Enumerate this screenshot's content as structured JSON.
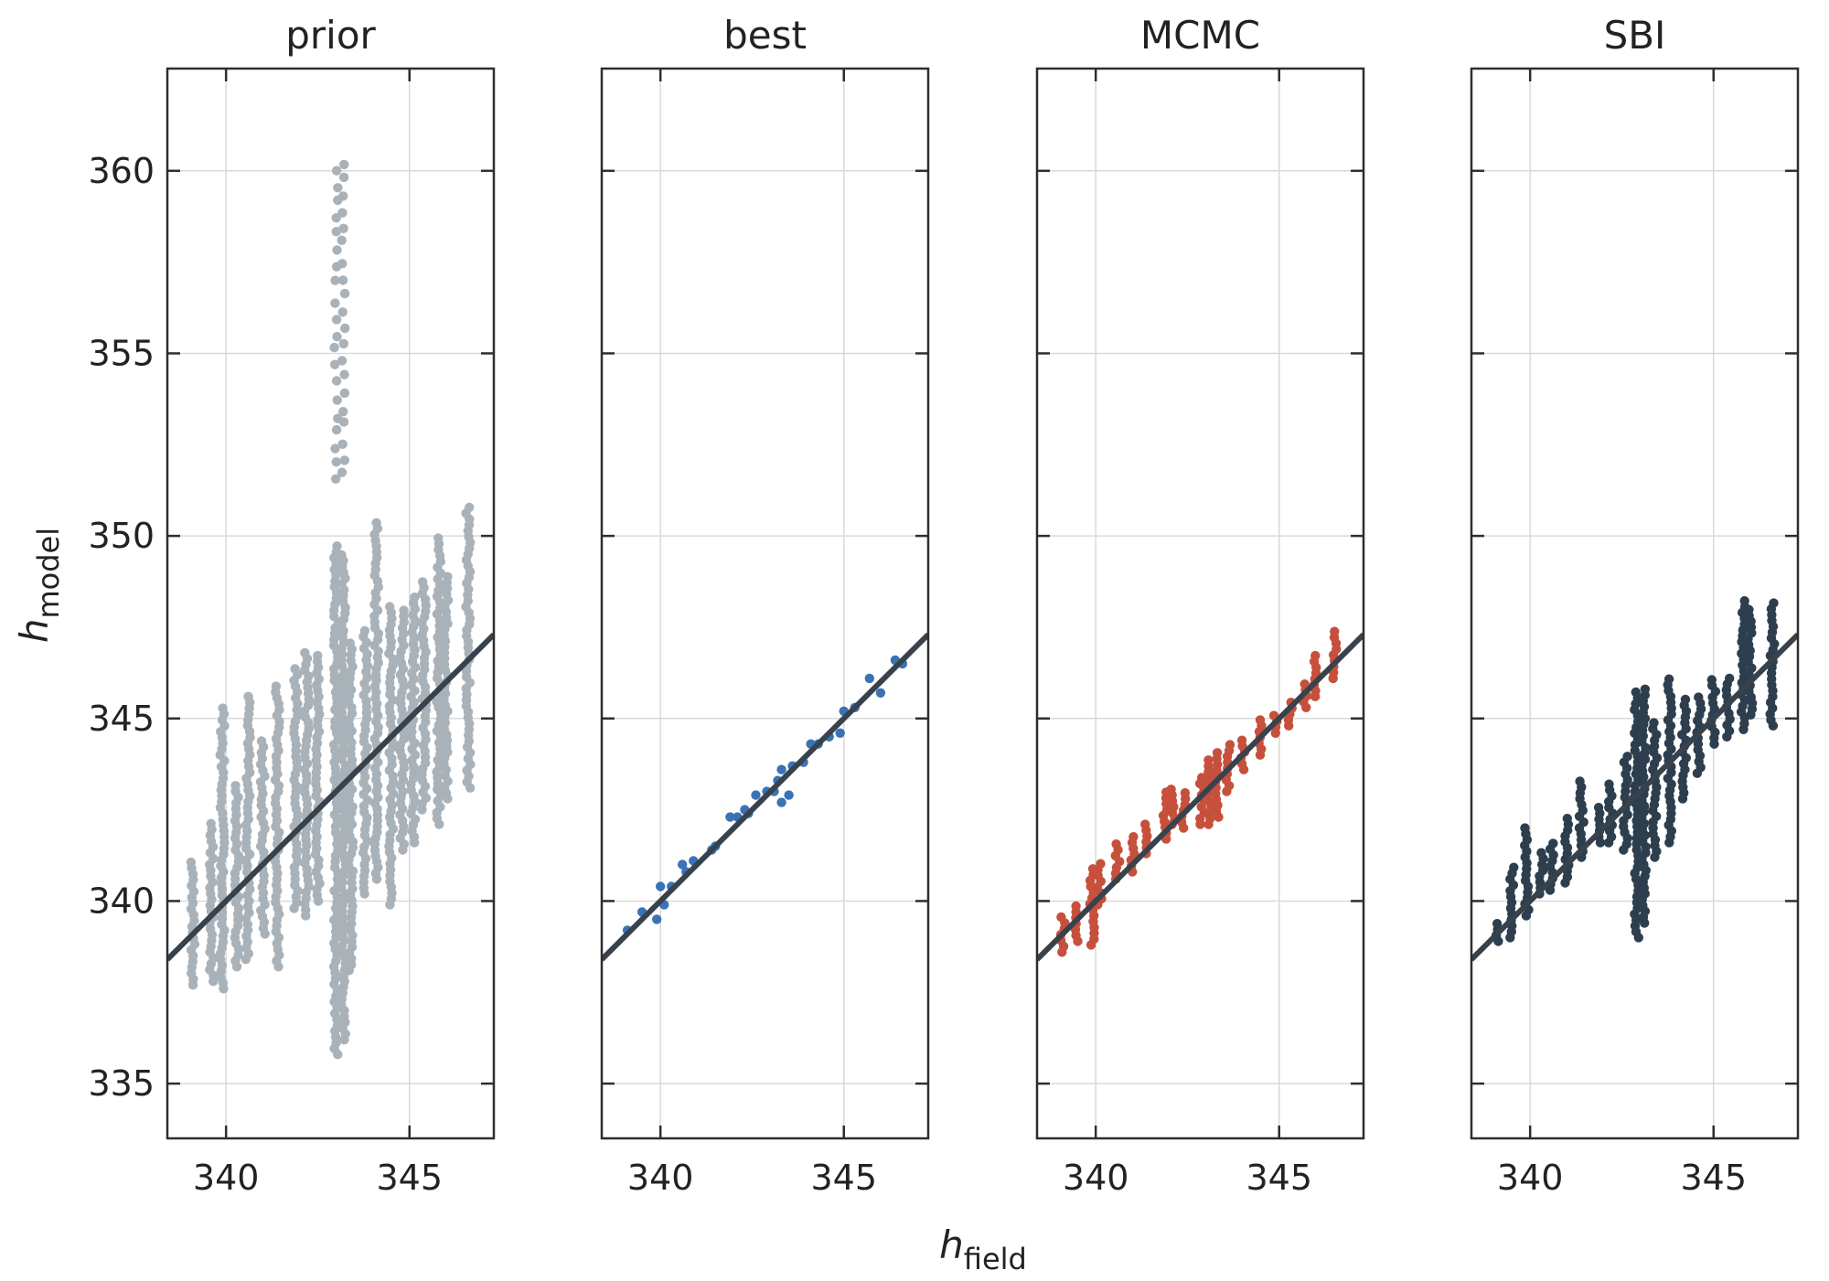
{
  "figure": {
    "ylabel": {
      "main": "h",
      "sub": "model"
    },
    "xlabel": {
      "main": "h",
      "sub": "field"
    }
  },
  "chart_data": [
    {
      "type": "scatter",
      "title": "prior",
      "color": "#a9b2b9",
      "xlim": [
        338.4,
        347.3
      ],
      "ylim": [
        333.5,
        362.8
      ],
      "x_ticks": [
        340,
        345
      ],
      "y_ticks": [
        335,
        340,
        345,
        350,
        355,
        360
      ],
      "grid": true,
      "reference_line": {
        "points": [
          [
            338.4,
            338.4
          ],
          [
            347.3,
            347.3
          ]
        ],
        "color": "#37424d"
      },
      "columns": [
        {
          "x": 339.1,
          "y_min": 337.7,
          "y_max": 341.1
        },
        {
          "x": 339.6,
          "y_min": 337.8,
          "y_max": 342.2
        },
        {
          "x": 339.9,
          "y_min": 337.6,
          "y_max": 345.4
        },
        {
          "x": 340.3,
          "y_min": 338.2,
          "y_max": 343.3
        },
        {
          "x": 340.6,
          "y_min": 338.4,
          "y_max": 345.6
        },
        {
          "x": 341.0,
          "y_min": 339.1,
          "y_max": 344.5
        },
        {
          "x": 341.4,
          "y_min": 338.2,
          "y_max": 346.0
        },
        {
          "x": 341.9,
          "y_min": 339.8,
          "y_max": 346.4
        },
        {
          "x": 342.2,
          "y_min": 339.6,
          "y_max": 346.9
        },
        {
          "x": 342.5,
          "y_min": 340.0,
          "y_max": 346.8
        },
        {
          "x": 343.0,
          "y_min": 335.8,
          "y_max": 349.8
        },
        {
          "x": 343.2,
          "y_min": 336.2,
          "y_max": 349.5
        },
        {
          "x": 343.4,
          "y_min": 338.1,
          "y_max": 347.2
        },
        {
          "x": 343.8,
          "y_min": 340.2,
          "y_max": 347.5
        },
        {
          "x": 344.1,
          "y_min": 340.6,
          "y_max": 350.4
        },
        {
          "x": 344.5,
          "y_min": 339.9,
          "y_max": 348.1
        },
        {
          "x": 344.8,
          "y_min": 341.4,
          "y_max": 348.0
        },
        {
          "x": 345.1,
          "y_min": 341.6,
          "y_max": 348.4
        },
        {
          "x": 345.4,
          "y_min": 342.5,
          "y_max": 348.8
        },
        {
          "x": 345.8,
          "y_min": 342.1,
          "y_max": 350.0
        },
        {
          "x": 346.0,
          "y_min": 342.8,
          "y_max": 349.0
        },
        {
          "x": 346.6,
          "y_min": 343.1,
          "y_max": 350.8
        }
      ],
      "outliers": [
        {
          "x": 343.0,
          "y_min": 351.5,
          "y_max": 360.3
        },
        {
          "x": 343.2,
          "y_min": 351.7,
          "y_max": 360.3
        }
      ]
    },
    {
      "type": "scatter",
      "title": "best",
      "color": "#3a73b5",
      "xlim": [
        338.4,
        347.3
      ],
      "ylim": [
        333.5,
        362.8
      ],
      "x_ticks": [
        340,
        345
      ],
      "y_ticks": [
        335,
        340,
        345,
        350,
        355,
        360
      ],
      "grid": true,
      "reference_line": {
        "points": [
          [
            338.4,
            338.4
          ],
          [
            347.3,
            347.3
          ]
        ],
        "color": "#37424d"
      },
      "points": [
        [
          339.1,
          339.2
        ],
        [
          339.5,
          339.7
        ],
        [
          339.9,
          339.5
        ],
        [
          340.0,
          340.4
        ],
        [
          340.1,
          339.9
        ],
        [
          340.3,
          340.4
        ],
        [
          340.6,
          341.0
        ],
        [
          340.7,
          340.8
        ],
        [
          340.9,
          341.1
        ],
        [
          341.4,
          341.4
        ],
        [
          341.5,
          341.5
        ],
        [
          341.9,
          342.3
        ],
        [
          342.1,
          342.3
        ],
        [
          342.3,
          342.5
        ],
        [
          342.4,
          342.4
        ],
        [
          342.6,
          342.9
        ],
        [
          342.9,
          343.0
        ],
        [
          343.1,
          343.0
        ],
        [
          343.2,
          343.3
        ],
        [
          343.3,
          343.6
        ],
        [
          343.3,
          342.7
        ],
        [
          343.5,
          342.9
        ],
        [
          343.6,
          343.7
        ],
        [
          343.9,
          343.8
        ],
        [
          344.1,
          344.3
        ],
        [
          344.3,
          344.3
        ],
        [
          344.6,
          344.5
        ],
        [
          344.9,
          344.6
        ],
        [
          345.0,
          345.2
        ],
        [
          345.3,
          345.3
        ],
        [
          345.7,
          346.1
        ],
        [
          346.0,
          345.7
        ],
        [
          346.4,
          346.6
        ],
        [
          346.6,
          346.5
        ]
      ]
    },
    {
      "type": "scatter",
      "title": "MCMC",
      "color": "#c6503c",
      "xlim": [
        338.4,
        347.3
      ],
      "ylim": [
        333.5,
        362.8
      ],
      "x_ticks": [
        340,
        345
      ],
      "y_ticks": [
        335,
        340,
        345,
        350,
        355,
        360
      ],
      "grid": true,
      "reference_line": {
        "points": [
          [
            338.4,
            338.4
          ],
          [
            347.3,
            347.3
          ]
        ],
        "color": "#37424d"
      },
      "columns": [
        {
          "x": 339.1,
          "y_min": 338.6,
          "y_max": 339.6
        },
        {
          "x": 339.5,
          "y_min": 338.9,
          "y_max": 340.0
        },
        {
          "x": 339.9,
          "y_min": 338.8,
          "y_max": 341.0
        },
        {
          "x": 340.1,
          "y_min": 339.9,
          "y_max": 341.1
        },
        {
          "x": 340.6,
          "y_min": 340.6,
          "y_max": 341.6
        },
        {
          "x": 341.0,
          "y_min": 340.8,
          "y_max": 341.9
        },
        {
          "x": 341.4,
          "y_min": 341.3,
          "y_max": 342.2
        },
        {
          "x": 341.9,
          "y_min": 341.7,
          "y_max": 343.0
        },
        {
          "x": 342.1,
          "y_min": 342.1,
          "y_max": 343.2
        },
        {
          "x": 342.4,
          "y_min": 342.0,
          "y_max": 343.0
        },
        {
          "x": 342.9,
          "y_min": 342.1,
          "y_max": 343.5
        },
        {
          "x": 343.1,
          "y_min": 342.1,
          "y_max": 343.9
        },
        {
          "x": 343.3,
          "y_min": 342.3,
          "y_max": 344.1
        },
        {
          "x": 343.6,
          "y_min": 343.0,
          "y_max": 344.3
        },
        {
          "x": 344.0,
          "y_min": 343.6,
          "y_max": 344.4
        },
        {
          "x": 344.5,
          "y_min": 344.0,
          "y_max": 345.0
        },
        {
          "x": 344.9,
          "y_min": 344.6,
          "y_max": 345.2
        },
        {
          "x": 345.3,
          "y_min": 344.8,
          "y_max": 345.5
        },
        {
          "x": 345.7,
          "y_min": 345.3,
          "y_max": 346.0
        },
        {
          "x": 346.0,
          "y_min": 345.6,
          "y_max": 346.8
        },
        {
          "x": 346.5,
          "y_min": 346.1,
          "y_max": 347.4
        }
      ]
    },
    {
      "type": "scatter",
      "title": "SBI",
      "color": "#2d3e4e",
      "xlim": [
        338.4,
        347.3
      ],
      "ylim": [
        333.5,
        362.8
      ],
      "x_ticks": [
        340,
        345
      ],
      "y_ticks": [
        335,
        340,
        345,
        350,
        355,
        360
      ],
      "grid": true,
      "reference_line": {
        "points": [
          [
            338.4,
            338.4
          ],
          [
            347.3,
            347.3
          ]
        ],
        "color": "#37424d"
      },
      "columns": [
        {
          "x": 339.1,
          "y_min": 338.9,
          "y_max": 339.4
        },
        {
          "x": 339.5,
          "y_min": 339.0,
          "y_max": 341.0
        },
        {
          "x": 339.9,
          "y_min": 339.6,
          "y_max": 342.1
        },
        {
          "x": 340.3,
          "y_min": 340.2,
          "y_max": 341.4
        },
        {
          "x": 340.6,
          "y_min": 340.3,
          "y_max": 341.7
        },
        {
          "x": 341.0,
          "y_min": 340.5,
          "y_max": 342.4
        },
        {
          "x": 341.4,
          "y_min": 341.2,
          "y_max": 343.3
        },
        {
          "x": 341.9,
          "y_min": 341.6,
          "y_max": 342.6
        },
        {
          "x": 342.2,
          "y_min": 341.6,
          "y_max": 343.2
        },
        {
          "x": 342.6,
          "y_min": 341.4,
          "y_max": 344.0
        },
        {
          "x": 342.9,
          "y_min": 339.0,
          "y_max": 345.8
        },
        {
          "x": 343.1,
          "y_min": 339.4,
          "y_max": 345.8
        },
        {
          "x": 343.4,
          "y_min": 341.2,
          "y_max": 345.0
        },
        {
          "x": 343.8,
          "y_min": 341.6,
          "y_max": 346.2
        },
        {
          "x": 344.2,
          "y_min": 342.8,
          "y_max": 345.6
        },
        {
          "x": 344.6,
          "y_min": 343.5,
          "y_max": 345.7
        },
        {
          "x": 345.0,
          "y_min": 344.3,
          "y_max": 346.1
        },
        {
          "x": 345.4,
          "y_min": 344.5,
          "y_max": 346.2
        },
        {
          "x": 345.8,
          "y_min": 344.7,
          "y_max": 348.3
        },
        {
          "x": 346.0,
          "y_min": 345.1,
          "y_max": 348.0
        },
        {
          "x": 346.6,
          "y_min": 344.8,
          "y_max": 348.2
        }
      ]
    }
  ]
}
